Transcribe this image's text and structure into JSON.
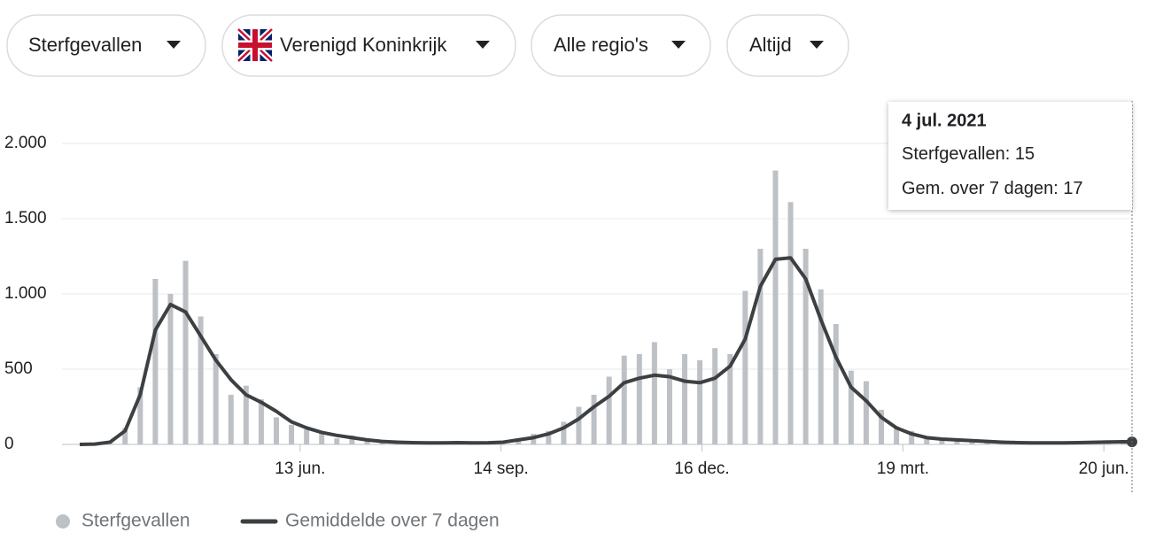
{
  "filters": [
    "Sterfgevallen",
    "Verenigd Koninkrijk",
    "Alle regio's",
    "Altijd"
  ],
  "tooltip": {
    "date": "4 jul. 2021",
    "rows": [
      {
        "label": "Sterfgevallen:",
        "value": 15
      },
      {
        "label": "Gem. over 7 dagen:",
        "value": 17
      }
    ]
  },
  "chart_data": {
    "type": "combo",
    "x": [
      0,
      7,
      14,
      21,
      28,
      35,
      42,
      49,
      56,
      63,
      70,
      77,
      84,
      91,
      98,
      105,
      112,
      119,
      126,
      133,
      140,
      147,
      154,
      161,
      168,
      175,
      182,
      189,
      196,
      203,
      210,
      217,
      224,
      231,
      238,
      245,
      252,
      259,
      266,
      273,
      280,
      287,
      294,
      301,
      308,
      315,
      322,
      329,
      336,
      343,
      350,
      357,
      364,
      371,
      378,
      385,
      392,
      399,
      406,
      413,
      420,
      427,
      434,
      441,
      448,
      455,
      462,
      469,
      476,
      483,
      487
    ],
    "series": [
      {
        "name": "Sterfgevallen",
        "type": "bar",
        "color": "#bdc1c6",
        "values": [
          0,
          3,
          20,
          110,
          380,
          1100,
          1000,
          1220,
          850,
          600,
          330,
          390,
          300,
          180,
          130,
          100,
          80,
          40,
          60,
          20,
          25,
          10,
          15,
          8,
          12,
          15,
          8,
          14,
          20,
          40,
          70,
          90,
          150,
          250,
          330,
          450,
          590,
          600,
          680,
          500,
          600,
          560,
          640,
          600,
          1020,
          1300,
          1820,
          1610,
          1300,
          1030,
          800,
          490,
          420,
          230,
          120,
          90,
          50,
          40,
          30,
          20,
          25,
          10,
          15,
          12,
          8,
          10,
          12,
          15,
          20,
          22,
          15
        ]
      },
      {
        "name": "Gemiddelde over 7 dagen",
        "type": "line",
        "color": "#3c4043",
        "values": [
          0,
          2,
          15,
          90,
          330,
          760,
          930,
          880,
          720,
          560,
          430,
          330,
          280,
          220,
          150,
          110,
          80,
          60,
          45,
          30,
          20,
          15,
          12,
          10,
          10,
          12,
          10,
          11,
          15,
          30,
          45,
          70,
          110,
          170,
          250,
          320,
          410,
          440,
          460,
          450,
          420,
          410,
          440,
          520,
          700,
          1050,
          1230,
          1240,
          1100,
          830,
          580,
          380,
          290,
          180,
          110,
          70,
          45,
          35,
          30,
          25,
          20,
          15,
          12,
          10,
          10,
          10,
          12,
          14,
          16,
          18,
          17
        ]
      }
    ],
    "xlim": [
      0,
      487
    ],
    "xticks": [
      {
        "value": 102,
        "label": "13 jun."
      },
      {
        "value": 195,
        "label": "14 sep."
      },
      {
        "value": 288,
        "label": "16 dec."
      },
      {
        "value": 381,
        "label": "19 mrt."
      },
      {
        "value": 474,
        "label": "20 jun."
      }
    ],
    "ylim": [
      0,
      2000
    ],
    "yticks": [
      0,
      500,
      {
        "value": 1000,
        "label": "1.000"
      },
      {
        "value": 1500,
        "label": "1.500"
      },
      {
        "value": 2000,
        "label": "2.000"
      }
    ],
    "grid": true
  }
}
